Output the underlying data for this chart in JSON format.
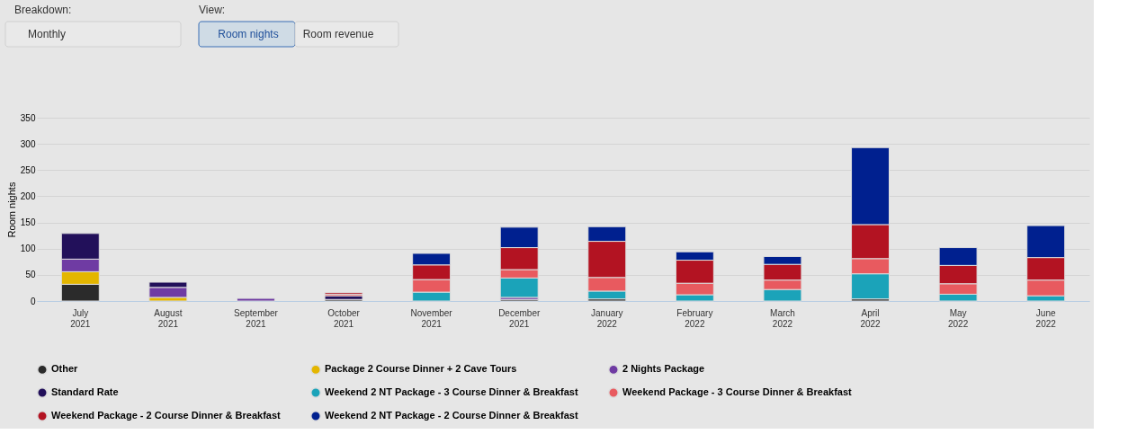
{
  "chart_data": {
    "type": "bar",
    "stacked": true,
    "ylabel": "Room nights",
    "ylim": [
      0,
      350
    ],
    "yticks": [
      0,
      50,
      100,
      150,
      200,
      250,
      300,
      350
    ],
    "grid": "y",
    "legend": "bottom",
    "annotations": [
      "Breakdown:",
      "Monthly",
      "View:",
      "Room nights",
      "Room revenue"
    ],
    "categories": [
      "July 2021",
      "August 2021",
      "September 2021",
      "October 2021",
      "November 2021",
      "December 2021",
      "January 2022",
      "February 2022",
      "March 2022",
      "April 2022",
      "May 2022",
      "June 2022"
    ],
    "series": [
      {
        "name": "Other",
        "color": "#2b2b2b",
        "values": [
          32,
          null,
          null,
          3,
          null,
          3,
          4,
          null,
          null,
          4,
          null,
          null
        ]
      },
      {
        "name": "Package 2 Course Dinner + 2 Cave Tours",
        "color": "#e4b600",
        "values": [
          24,
          7,
          null,
          null,
          null,
          null,
          null,
          null,
          null,
          null,
          null,
          null
        ]
      },
      {
        "name": "2 Nights Package",
        "color": "#6f3ba3",
        "values": [
          24,
          19,
          5,
          null,
          null,
          4,
          null,
          null,
          null,
          null,
          null,
          null
        ]
      },
      {
        "name": "Standard Rate",
        "color": "#22105a",
        "values": [
          49,
          10,
          null,
          7,
          null,
          null,
          null,
          null,
          null,
          null,
          null,
          null
        ]
      },
      {
        "name": "Weekend 2 NT Package - 3 Course Dinner & Breakfast",
        "color": "#1ba3b9",
        "values": [
          null,
          null,
          null,
          null,
          17,
          37,
          15,
          12,
          22,
          48,
          13,
          10
        ]
      },
      {
        "name": "Weekend Package - 3 Course Dinner & Breakfast",
        "color": "#e85a5f",
        "values": [
          null,
          null,
          null,
          3,
          24,
          16,
          26,
          22,
          18,
          29,
          20,
          30
        ]
      },
      {
        "name": "Weekend Package - 2 Course Dinner & Breakfast",
        "color": "#b31322",
        "values": [
          null,
          null,
          null,
          3,
          28,
          42,
          69,
          44,
          30,
          65,
          35,
          43
        ]
      },
      {
        "name": "Weekend 2 NT Package - 2 Course Dinner & Breakfast",
        "color": "#00208f",
        "values": [
          null,
          null,
          null,
          null,
          22,
          39,
          28,
          16,
          15,
          147,
          34,
          61
        ]
      }
    ]
  }
}
